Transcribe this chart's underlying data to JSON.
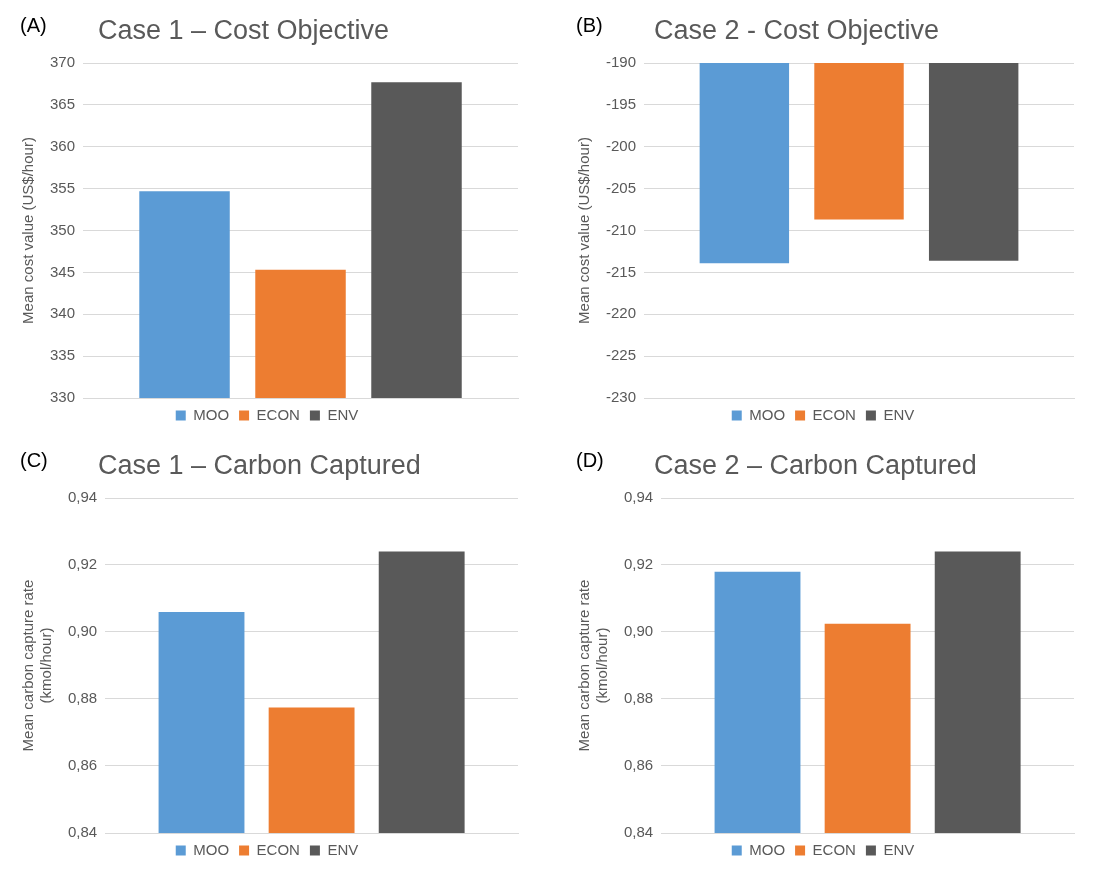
{
  "chart_data": [
    {
      "type": "bar",
      "title": "Case 1 – Cost Objective",
      "ylabel": "Mean cost value  (US$/hour)",
      "annotations": [
        "(A)"
      ],
      "categories": [
        null
      ],
      "series": [
        {
          "name": "MOO",
          "color": "#5b9bd5",
          "values": [
            354.7
          ]
        },
        {
          "name": "ECON",
          "color": "#ed7d31",
          "values": [
            345.3
          ]
        },
        {
          "name": "ENV",
          "color": "#595959",
          "values": [
            367.7
          ]
        }
      ],
      "ylim": [
        330,
        370
      ],
      "yticks": [
        330,
        335,
        340,
        345,
        350,
        355,
        360,
        365,
        370
      ],
      "grid": "y",
      "legend": "bottom"
    },
    {
      "type": "bar",
      "title": "Case 2 - Cost Objective",
      "ylabel": "Mean cost value  (US$/hour)",
      "annotations": [
        "(B)"
      ],
      "categories": [
        null
      ],
      "series": [
        {
          "name": "MOO",
          "color": "#5b9bd5",
          "values": [
            -213.9
          ]
        },
        {
          "name": "ECON",
          "color": "#ed7d31",
          "values": [
            -208.7
          ]
        },
        {
          "name": "ENV",
          "color": "#595959",
          "values": [
            -213.6
          ]
        }
      ],
      "ylim": [
        -230,
        -190
      ],
      "yticks": [
        -230,
        -225,
        -220,
        -215,
        -210,
        -205,
        -200,
        -195,
        -190
      ],
      "grid": "y",
      "legend": "bottom"
    },
    {
      "type": "bar",
      "title": "Case 1 – Carbon Captured",
      "ylabel": "Mean carbon capture rate (kmol/hour)",
      "annotations": [
        "(C)"
      ],
      "categories": [
        null
      ],
      "series": [
        {
          "name": "MOO",
          "color": "#5b9bd5",
          "values": [
            0.906
          ]
        },
        {
          "name": "ECON",
          "color": "#ed7d31",
          "values": [
            0.8775
          ]
        },
        {
          "name": "ENV",
          "color": "#595959",
          "values": [
            0.924
          ]
        }
      ],
      "ylim": [
        0.84,
        0.94
      ],
      "yticks": [
        {
          "value": 0.84,
          "label": "0,84"
        },
        {
          "value": 0.86,
          "label": "0,86"
        },
        {
          "value": 0.88,
          "label": "0,88"
        },
        {
          "value": 0.9,
          "label": "0,90"
        },
        {
          "value": 0.92,
          "label": "0,92"
        },
        {
          "value": 0.94,
          "label": "0,94"
        }
      ],
      "grid": "y",
      "legend": "bottom"
    },
    {
      "type": "bar",
      "title": "Case 2 – Carbon Captured",
      "ylabel": "Mean carbon capture rate (kmol/hour)",
      "annotations": [
        "(D)"
      ],
      "categories": [
        null
      ],
      "series": [
        {
          "name": "MOO",
          "color": "#5b9bd5",
          "values": [
            0.918
          ]
        },
        {
          "name": "ECON",
          "color": "#ed7d31",
          "values": [
            0.9025
          ]
        },
        {
          "name": "ENV",
          "color": "#595959",
          "values": [
            0.924
          ]
        }
      ],
      "ylim": [
        0.84,
        0.94
      ],
      "yticks": [
        {
          "value": 0.84,
          "label": "0,84"
        },
        {
          "value": 0.86,
          "label": "0,86"
        },
        {
          "value": 0.88,
          "label": "0,88"
        },
        {
          "value": 0.9,
          "label": "0,90"
        },
        {
          "value": 0.92,
          "label": "0,92"
        },
        {
          "value": 0.94,
          "label": "0,94"
        }
      ],
      "grid": "y",
      "legend": "bottom"
    }
  ]
}
